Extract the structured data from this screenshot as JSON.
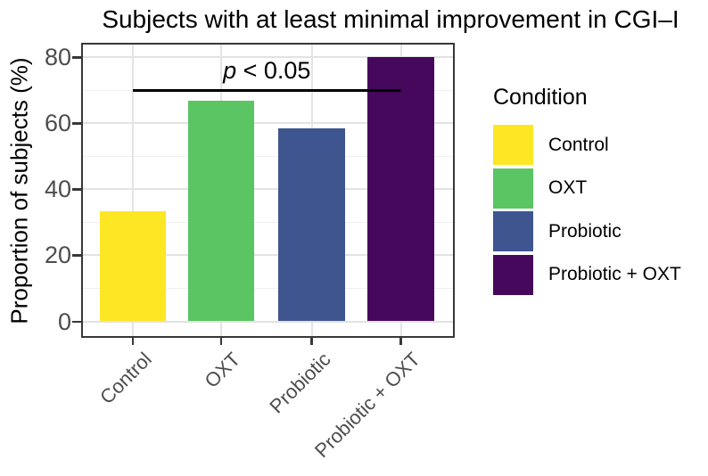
{
  "title": "Subjects with at least minimal improvement in CGI–I",
  "y_axis_title": "Proportion of subjects (%)",
  "annotation": {
    "symbol": "p",
    "comparison": " < 0.05"
  },
  "legend": {
    "title": "Condition",
    "items": [
      {
        "label": "Control",
        "color": "#FDE725"
      },
      {
        "label": "OXT",
        "color": "#5BC563"
      },
      {
        "label": "Probiotic",
        "color": "#3E5590"
      },
      {
        "label": "Probiotic + OXT",
        "color": "#46085C"
      }
    ]
  },
  "chart_data": {
    "type": "bar",
    "title": "Subjects with at least minimal improvement in CGI–I",
    "categories": [
      "Control",
      "OXT",
      "Probiotic",
      "Probiotic + OXT"
    ],
    "values": [
      33.3,
      66.7,
      58.3,
      80
    ],
    "colors": [
      "#FDE725",
      "#5BC563",
      "#3E5590",
      "#46085C"
    ],
    "xlabel": "",
    "ylabel": "Proportion of subjects (%)",
    "ylim": [
      0,
      84
    ],
    "yticks": [
      0,
      20,
      40,
      60,
      80
    ],
    "yticks_minor": [
      10,
      30,
      50,
      70
    ],
    "grid": "major+minor, light gray, panel border dark",
    "x_tick_angle": 45,
    "legend_title": "Condition",
    "legend_position": "right",
    "annotation": {
      "text": "p < 0.05",
      "y": 70,
      "from": "Control",
      "to": "Probiotic + OXT"
    }
  }
}
